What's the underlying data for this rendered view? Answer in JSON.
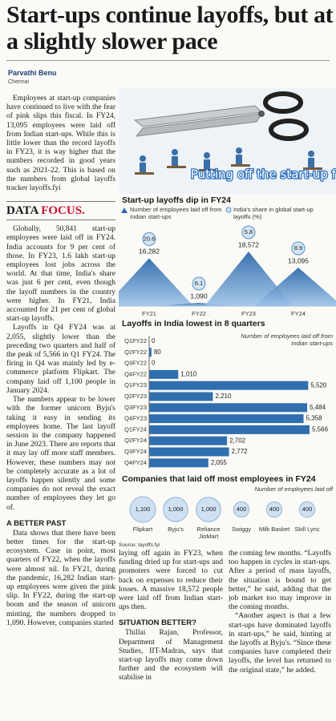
{
  "headline": "Start-ups continue layoffs, but at a slightly slower pace",
  "byline": {
    "author": "Parvathi Benu",
    "location": "Chennai"
  },
  "intro": "Employees at start-up companies have continued to live with the fear of pink slips this fiscal. In FY24, 13,095 employees were laid off from Indian start-ups. While this is little lower than the record layoffs in FY23, it is way higher that the numbers recorded in good years such as 2021-22. This is based on the numbers from global layoffs tracker layoffs.fyi",
  "image_caption": "Putting off the start-up fire",
  "data_focus": [
    "DATA",
    "FOCUS."
  ],
  "data_focus_paragraphs": [
    "Globally, 50,841 start-up employees were laid off in FY24. India accounts for 9 per cent of those. In FY23, 1.6 lakh start-up employees lost jobs across the world. At that time, India's share was just 6 per cent, even though the layoff numbers in the country were higher. In FY21, India accounted for 21 per cent of global start-up layoffs.",
    "Layoffs in Q4 FY24 was at 2,055, slightly lower than the preceding two quarters and half of the peak of 5,566 in Q1 FY24. The firing in Q4 was mainly led by e-commerce platform Flipkart. The company laid off 1,100 people in January 2024.",
    "The numbers appear to be lower with the former unicorn Byju's taking it easy in sending its employees home. The last layoff session in the company happened in June 2023. There are reports that it may lay off more staff members. However, these numbers may not be completely accurate as a lot of layoffs happen silently and some companies do not reveal the exact number of employees they let go of."
  ],
  "better_past": {
    "heading": "A BETTER PAST",
    "paragraphs": [
      "Data shows that there have been better times for the start-up ecosystem. Case in point, most quarters of FY22, when the layoffs were almost nil. In FY21, during the pandemic, 16,282 Indian start-up employees were given the pink slip. In FY22, during the start-up boom and the season of unicorn minting, the numbers dropped to 1,090. However, companies started",
      "laying off again in FY23, when funding dried up for start-ups and promoters were forced to cut back on expenses to reduce their losses. A massive 18,572 people were laid off from Indian start-ups then."
    ]
  },
  "situation_better": {
    "heading": "SITUATION BETTER?",
    "paragraphs": [
      "Thillai Rajan, Professor, Department of Management Studies, IIT-Madras, says that start-up layoffs may come down further and the ecosystem will stabilise in",
      "the coming few months. “Layoffs too happen in cycles in start-ups. After a period of mass layoffs, the situation is bound to get better,” he said, adding that the job market too may improve in the coming months.",
      "“Another aspect is that a few start-ups have dominated layoffs in start-ups,” he said, hinting at the layoffs at Byju's. “Since these companies have completed their layoffs, the level has returned to the original state,” he added."
    ]
  },
  "source": "Source: layoffs.fyi",
  "chart_data": [
    {
      "type": "triangle",
      "title": "Start-up layoffs  dip in FY24",
      "categories": [
        "FY21",
        "FY22",
        "FY23",
        "FY24"
      ],
      "series": [
        {
          "name": "Number of employees laid off from Indian start-ups",
          "color": "#2d6cb0",
          "values": [
            16282,
            1090,
            18572,
            13095
          ],
          "value_labels": [
            "16,282",
            "1,090",
            "18,572",
            "13,095"
          ]
        },
        {
          "name": "India's share in global start-up layoffs (%)",
          "color": "#d3e5f5",
          "values": [
            20.6,
            6.1,
            5.8,
            8.9
          ]
        }
      ]
    },
    {
      "type": "bar",
      "horizontal": true,
      "title": "Layoffs in India lowest in 8 quarters",
      "subtitle": "Number of employees laid off from Indian start-ups",
      "color": "#2f6fae",
      "categories": [
        "Q1FY22",
        "Q2FY22",
        "Q3FY22",
        "Q4FY22",
        "Q1FY23",
        "Q2FY23",
        "Q3FY23",
        "Q4FY23",
        "Q1FY24",
        "Q2FY24",
        "Q3FY24",
        "Q4FY24"
      ],
      "values": [
        0,
        80,
        0,
        1010,
        5520,
        2210,
        5484,
        5358,
        5566,
        2702,
        2772,
        2055
      ],
      "value_labels": [
        "0",
        "80",
        "0",
        "1,010",
        "5,520",
        "2,210",
        "5,484",
        "5,358",
        "5,566",
        "2,702",
        "2,772",
        "2,055"
      ]
    },
    {
      "type": "bubble",
      "title": "Companies that laid off most employees in FY24",
      "subtitle": "Number of employees laid off",
      "color": "#cfe0f1",
      "categories": [
        "Flipkart",
        "Byju's",
        "Reliance JioMart",
        "Swiggy",
        "Milk Basket",
        "Skill Lync"
      ],
      "values": [
        1100,
        1000,
        1000,
        400,
        400,
        400
      ],
      "value_labels": [
        "1,100",
        "1,000",
        "1,000",
        "400",
        "400",
        "400"
      ]
    }
  ]
}
